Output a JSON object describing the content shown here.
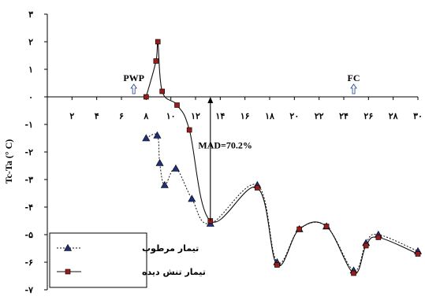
{
  "chart_data": {
    "type": "line",
    "ylabel": "Tc-Ta (° C)",
    "xlim": [
      0,
      30
    ],
    "ylim": [
      -7,
      3
    ],
    "x_ticks": [
      0,
      2,
      4,
      6,
      8,
      10,
      12,
      14,
      16,
      18,
      20,
      22,
      24,
      26,
      28,
      30
    ],
    "x_tick_labels": [
      "",
      "۲",
      "۴",
      "۶",
      "۸",
      "۱۰",
      "۱۲",
      "۱۴",
      "۱۶",
      "۱۸",
      "۲۰",
      "۲۲",
      "۲۴",
      "۲۶",
      "۲۸",
      "۳۰"
    ],
    "y_ticks": [
      3,
      2,
      1,
      0,
      -1,
      -2,
      -3,
      -4,
      -5,
      -6,
      -7
    ],
    "y_tick_labels": [
      "۳",
      "۲",
      "۱",
      "۰",
      "-۱",
      "-۲",
      "-۳",
      "-۴",
      "-۵",
      "-۶",
      "-۷"
    ],
    "series": [
      {
        "name": "تیمار مرطوب",
        "marker": "triangle",
        "line": "dotted",
        "color": "#1f2f7a",
        "x": [
          8.0,
          8.9,
          9.1,
          9.5,
          10.4,
          11.7,
          13.2,
          17.0,
          18.6,
          20.4,
          22.6,
          24.8,
          25.8,
          26.8,
          30.0
        ],
        "y": [
          -1.5,
          -1.4,
          -2.4,
          -3.2,
          -2.6,
          -3.7,
          -4.6,
          -3.2,
          -6.0,
          -4.8,
          -4.7,
          -6.3,
          -5.3,
          -5.0,
          -5.6
        ]
      },
      {
        "name": "تیمار تنش دیده",
        "marker": "square",
        "line": "solid",
        "color": "#9b1b1b",
        "x": [
          8.0,
          8.8,
          8.95,
          9.3,
          10.5,
          11.5,
          13.2,
          17.0,
          18.6,
          20.4,
          22.6,
          24.8,
          25.8,
          26.8,
          30.0
        ],
        "y": [
          0.0,
          1.3,
          2.0,
          0.2,
          -0.3,
          -1.2,
          -4.5,
          -3.3,
          -6.1,
          -4.8,
          -4.7,
          -6.4,
          -5.4,
          -5.1,
          -5.7
        ]
      }
    ],
    "annotations": [
      {
        "text": "PWP",
        "x": 7.0,
        "arrow": "up"
      },
      {
        "text": "FC",
        "x": 24.8,
        "arrow": "up"
      },
      {
        "text": "MAD=70.2%",
        "x": 14.4,
        "y": -1.75
      }
    ],
    "vertical_arrow": {
      "x": 13.2,
      "y_from": -4.5,
      "y_to": 0.0
    },
    "grid": false,
    "legend_position": "bottom-left"
  }
}
